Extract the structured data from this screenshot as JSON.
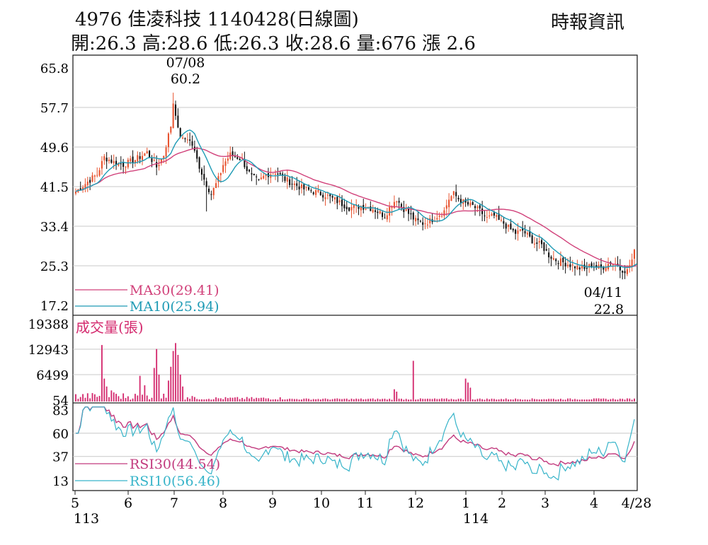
{
  "header": {
    "title": "4976 佳凌科技 1140428(日線圖)",
    "ohlc": "開:26.3 高:28.6 低:26.3 收:28.6 量:676 漲 2.6",
    "source": "時報資訊"
  },
  "colors": {
    "up": "#e8532f",
    "down": "#111111",
    "ma30": "#d1417a",
    "ma10": "#1f9bb5",
    "volume": "#d42a6e",
    "rsi30": "#c23a7e",
    "rsi10": "#37b4c9",
    "grid": "#c8c8c8"
  },
  "chart_data": [
    {
      "type": "candlestick",
      "name": "price",
      "yticks": [
        "65.8",
        "57.7",
        "49.6",
        "41.5",
        "33.4",
        "25.3",
        "17.2"
      ],
      "ylim": [
        17.2,
        65.8
      ],
      "x_ticks": [
        "5",
        "6",
        "7",
        "8",
        "9",
        "10",
        "11",
        "12",
        "1",
        "2",
        "3",
        "4",
        "4/28"
      ],
      "year_labels": [
        "113",
        "114"
      ],
      "grid": true,
      "n_days": 236,
      "high_annotation": {
        "date": "07/08",
        "value": "60.2"
      },
      "low_annotation": {
        "date": "04/11",
        "value": "22.8"
      },
      "close_anchors": [
        [
          0,
          40.5
        ],
        [
          5,
          42.5
        ],
        [
          9,
          44
        ],
        [
          12,
          47.5
        ],
        [
          16,
          46.5
        ],
        [
          20,
          46
        ],
        [
          25,
          47
        ],
        [
          30,
          48.5
        ],
        [
          34,
          45.5
        ],
        [
          37,
          48
        ],
        [
          39,
          52
        ],
        [
          40,
          54
        ],
        [
          41,
          58
        ],
        [
          42,
          55.5
        ],
        [
          43,
          53
        ],
        [
          45,
          51
        ],
        [
          47,
          51.5
        ],
        [
          49,
          50
        ],
        [
          51,
          47
        ],
        [
          54,
          43
        ],
        [
          57,
          40
        ],
        [
          60,
          43
        ],
        [
          62,
          46
        ],
        [
          65,
          48
        ],
        [
          68,
          47.5
        ],
        [
          70,
          47
        ],
        [
          72,
          45
        ],
        [
          74,
          43.5
        ],
        [
          77,
          42.5
        ],
        [
          80,
          44
        ],
        [
          84,
          44.5
        ],
        [
          88,
          43
        ],
        [
          92,
          42
        ],
        [
          96,
          41
        ],
        [
          100,
          40.5
        ],
        [
          105,
          39.8
        ],
        [
          110,
          38.5
        ],
        [
          115,
          37.2
        ],
        [
          120,
          37.5
        ],
        [
          125,
          37
        ],
        [
          130,
          35.5
        ],
        [
          133,
          38
        ],
        [
          135,
          39
        ],
        [
          137,
          37.5
        ],
        [
          140,
          36
        ],
        [
          143,
          34.5
        ],
        [
          146,
          34
        ],
        [
          149,
          34.5
        ],
        [
          152,
          35.5
        ],
        [
          155,
          36.5
        ],
        [
          157,
          39
        ],
        [
          159,
          40
        ],
        [
          161,
          39
        ],
        [
          164,
          38
        ],
        [
          167,
          37.5
        ],
        [
          170,
          36.5
        ],
        [
          173,
          35
        ],
        [
          176,
          35.5
        ],
        [
          178,
          34.5
        ],
        [
          180,
          34
        ],
        [
          182,
          33
        ],
        [
          185,
          32
        ],
        [
          188,
          32.5
        ],
        [
          191,
          31
        ],
        [
          193,
          30
        ],
        [
          196,
          29.5
        ],
        [
          199,
          27.5
        ],
        [
          202,
          26.5
        ],
        [
          205,
          26
        ],
        [
          208,
          25.5
        ],
        [
          211,
          25
        ],
        [
          214,
          24.5
        ],
        [
          217,
          25.5
        ],
        [
          221,
          24.8
        ],
        [
          225,
          26
        ],
        [
          228,
          25.5
        ],
        [
          231,
          24
        ],
        [
          234,
          26
        ],
        [
          236,
          28.6
        ]
      ],
      "ma_labels": [
        "MA30(29.41)",
        "MA10(25.94)"
      ]
    },
    {
      "type": "bar",
      "name": "volume",
      "label": "成交量(張)",
      "yticks": [
        "19388",
        "12943",
        "6499",
        "54"
      ],
      "ylim": [
        54,
        19388
      ],
      "spikes": [
        [
          11,
          14000
        ],
        [
          12,
          5500
        ],
        [
          13,
          3500
        ],
        [
          15,
          2500
        ],
        [
          16,
          2000
        ],
        [
          27,
          6200
        ],
        [
          29,
          3800
        ],
        [
          33,
          8200
        ],
        [
          34,
          13000
        ],
        [
          35,
          6500
        ],
        [
          39,
          5000
        ],
        [
          40,
          8500
        ],
        [
          41,
          12500
        ],
        [
          42,
          14500
        ],
        [
          43,
          11500
        ],
        [
          44,
          6500
        ],
        [
          45,
          3500
        ],
        [
          142,
          10000
        ],
        [
          164,
          5500
        ],
        [
          165,
          4500
        ],
        [
          166,
          3200
        ],
        [
          134,
          2800
        ],
        [
          135,
          2200
        ]
      ]
    },
    {
      "type": "line",
      "name": "rsi",
      "yticks": [
        "83",
        "60",
        "37",
        "13"
      ],
      "ylim": [
        13,
        83
      ],
      "series_labels": [
        "RSI30(44.54)",
        "RSI10(56.46)"
      ]
    }
  ]
}
